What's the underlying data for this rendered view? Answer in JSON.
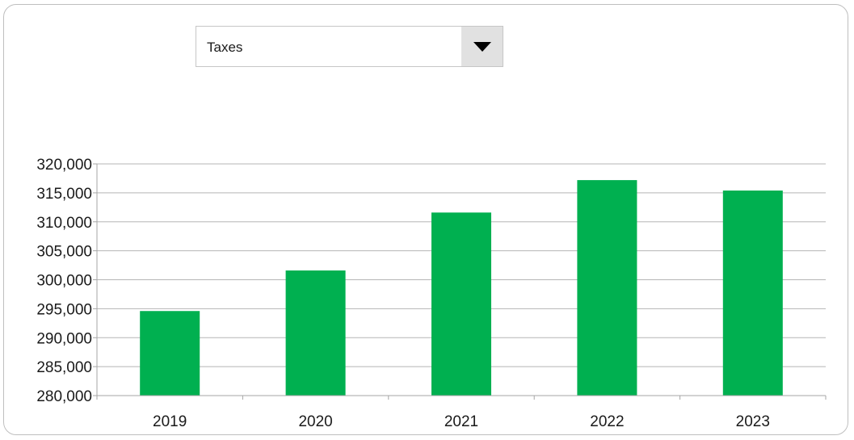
{
  "selector": {
    "value": "Taxes",
    "icon": "chevron-down-icon"
  },
  "colors": {
    "bar": "#00b050",
    "grid": "#b5b5b5",
    "axis": "#a6a6a6",
    "frame": "#bfbfbf"
  },
  "chart_data": {
    "type": "bar",
    "categories": [
      "2019",
      "2020",
      "2021",
      "2022",
      "2023"
    ],
    "values": [
      294600,
      301600,
      311600,
      317200,
      315400
    ],
    "title": "",
    "xlabel": "",
    "ylabel": "",
    "ylim": [
      280000,
      320000
    ],
    "yticks": [
      280000,
      285000,
      290000,
      295000,
      300000,
      305000,
      310000,
      315000,
      320000
    ],
    "ytick_labels": [
      "280,000",
      "285,000",
      "290,000",
      "295,000",
      "300,000",
      "305,000",
      "310,000",
      "315,000",
      "320,000"
    ],
    "grid": true,
    "legend": "none"
  }
}
